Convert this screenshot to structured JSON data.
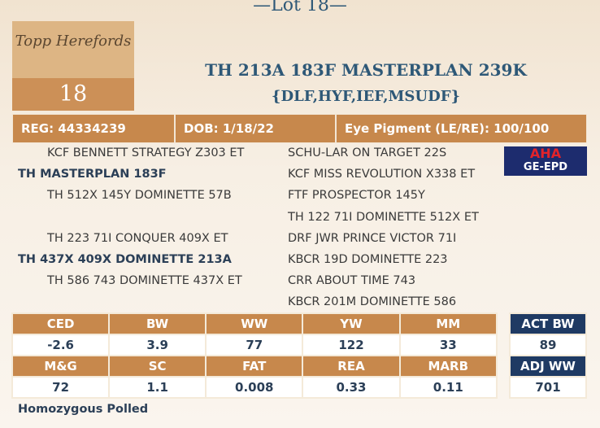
{
  "lot_header": "—Lot 18—",
  "logo": {
    "text": "Topp Herefords",
    "lot_number": "18"
  },
  "title": "TH 213A 183F MASTERPLAN 239K",
  "subtitle": "{DLF,HYF,IEF,MSUDF}",
  "info_bar": [
    "REG: 44334239",
    "DOB: 1/18/22",
    "Eye Pigment (LE/RE): 100/100"
  ],
  "badge": {
    "top": "AHA",
    "bottom": "GE-EPD"
  },
  "pedigree": {
    "left": [
      "KCF BENNETT STRATEGY Z303 ET",
      "TH MASTERPLAN 183F",
      "TH 512X 145Y DOMINETTE 57B",
      null,
      "TH 223 71I CONQUER 409X ET",
      "TH 437X 409X DOMINETTE 213A",
      "TH 586 743 DOMINETTE 437X ET",
      null
    ],
    "right": [
      "SCHU-LAR ON TARGET 22S",
      "KCF MISS REVOLUTION X338 ET",
      "FTF PROSPECTOR 145Y",
      "TH 122 71I DOMINETTE 512X ET",
      "DRF JWR PRINCE VICTOR 71I",
      "KBCR 19D DOMINETTE 223",
      "CRR ABOUT TIME 743",
      "KBCR 201M DOMINETTE 586"
    ]
  },
  "epd_table": {
    "rows": [
      [
        "CED",
        "BW",
        "WW",
        "YW",
        "MM"
      ],
      [
        "-2.6",
        "3.9",
        "77",
        "122",
        "33"
      ],
      [
        "M&G",
        "SC",
        "FAT",
        "REA",
        "MARB"
      ],
      [
        "72",
        "1.1",
        "0.008",
        "0.33",
        "0.11"
      ]
    ]
  },
  "side_table": {
    "rows": [
      [
        "ACT BW"
      ],
      [
        "89"
      ],
      [
        "ADJ WW"
      ],
      [
        "701"
      ]
    ]
  },
  "footer": "Homozygous Polled"
}
